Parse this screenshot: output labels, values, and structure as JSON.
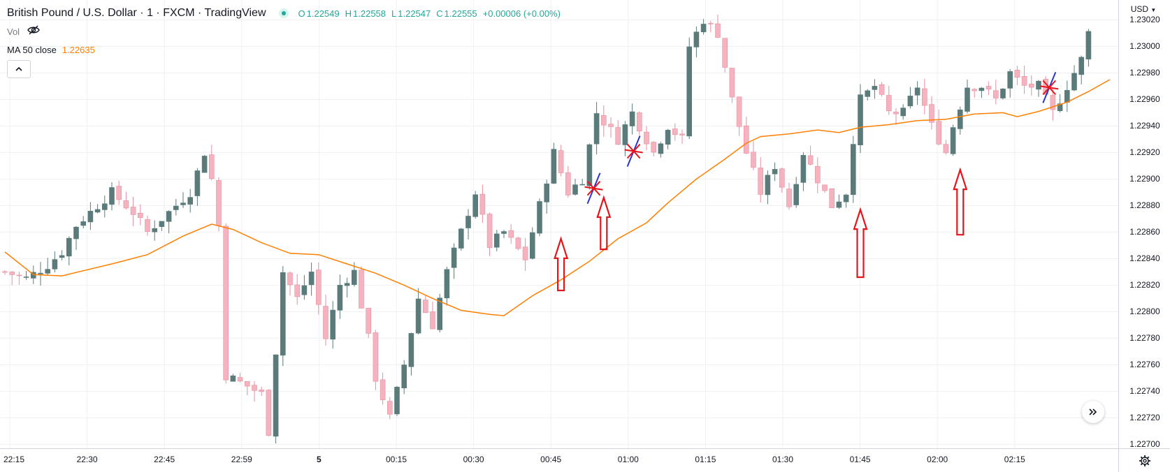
{
  "header": {
    "symbol_title": "British Pound / U.S. Dollar · 1 · FXCM · TradingView",
    "ohlc": {
      "o_label": "O",
      "o": "1.22549",
      "h_label": "H",
      "h": "1.22558",
      "l_label": "L",
      "l": "1.22547",
      "c_label": "C",
      "c": "1.22555",
      "change": "+0.00006 (+0.00%)"
    },
    "vol_label": "Vol",
    "ma_label": "MA 50 close",
    "ma_value": "1.22635"
  },
  "price_axis": {
    "currency": "USD",
    "ticks": [
      "1.23020",
      "1.23000",
      "1.22980",
      "1.22960",
      "1.22940",
      "1.22920",
      "1.22900",
      "1.22880",
      "1.22860",
      "1.22840",
      "1.22820",
      "1.22800",
      "1.22780",
      "1.22760",
      "1.22740",
      "1.22720",
      "1.22700"
    ]
  },
  "time_axis": {
    "ticks": [
      {
        "label": "22:15",
        "bold": false
      },
      {
        "label": "22:30",
        "bold": false
      },
      {
        "label": "22:45",
        "bold": false
      },
      {
        "label": "22:59",
        "bold": false
      },
      {
        "label": "5",
        "bold": true
      },
      {
        "label": "00:15",
        "bold": false
      },
      {
        "label": "00:30",
        "bold": false
      },
      {
        "label": "00:45",
        "bold": false
      },
      {
        "label": "01:00",
        "bold": false
      },
      {
        "label": "01:15",
        "bold": false
      },
      {
        "label": "01:30",
        "bold": false
      },
      {
        "label": "01:45",
        "bold": false
      },
      {
        "label": "02:00",
        "bold": false
      },
      {
        "label": "02:15",
        "bold": false
      }
    ]
  },
  "colors": {
    "up": "#5b7b7b",
    "down": "#f5b3bf",
    "ma": "#ff7f00",
    "grid": "#eef0f3",
    "arrow": "#e8141b",
    "mark_red": "#e8141b",
    "mark_blue": "#2a35c9"
  },
  "chart_data": {
    "type": "candlestick",
    "time_labels": [
      "22:15",
      "22:30",
      "22:45",
      "22:59",
      "5",
      "00:15",
      "00:30",
      "00:45",
      "01:00",
      "01:15",
      "01:30",
      "01:45",
      "02:00",
      "02:15"
    ],
    "price_labels": [
      "1.23020",
      "1.23000",
      "1.22980",
      "1.22960",
      "1.22940",
      "1.22920",
      "1.22900",
      "1.22880",
      "1.22860",
      "1.22840",
      "1.22820",
      "1.22800",
      "1.22780",
      "1.22760",
      "1.22740",
      "1.22720",
      "1.22700"
    ],
    "ylim": [
      1.22697,
      1.23035
    ],
    "close_path": [
      [
        0,
        1.2283
      ],
      [
        3,
        1.22825
      ],
      [
        6,
        1.22835
      ],
      [
        8,
        1.22845
      ],
      [
        10,
        1.22865
      ],
      [
        13,
        1.2288
      ],
      [
        15,
        1.2289
      ],
      [
        18,
        1.22875
      ],
      [
        20,
        1.2286
      ],
      [
        23,
        1.22875
      ],
      [
        26,
        1.2289
      ],
      [
        28,
        1.2292
      ],
      [
        29,
        1.229
      ],
      [
        30,
        1.22865
      ],
      [
        31,
        1.22752
      ],
      [
        34,
        1.22744
      ],
      [
        36,
        1.22738
      ],
      [
        37,
        1.2271
      ],
      [
        38,
        1.2277
      ],
      [
        39,
        1.2283
      ],
      [
        41,
        1.2281
      ],
      [
        43,
        1.2283
      ],
      [
        45,
        1.2278
      ],
      [
        47,
        1.2282
      ],
      [
        49,
        1.2283
      ],
      [
        51,
        1.2278
      ],
      [
        52,
        1.2275
      ],
      [
        54,
        1.2272
      ],
      [
        55,
        1.2274
      ],
      [
        56,
        1.2276
      ],
      [
        58,
        1.2281
      ],
      [
        60,
        1.2279
      ],
      [
        62,
        1.2283
      ],
      [
        64,
        1.2286
      ],
      [
        66,
        1.2289
      ],
      [
        68,
        1.2285
      ],
      [
        70,
        1.2286
      ],
      [
        73,
        1.2284
      ],
      [
        75,
        1.2288
      ],
      [
        77,
        1.2292
      ],
      [
        79,
        1.2289
      ],
      [
        81,
        1.229
      ],
      [
        83,
        1.2295
      ],
      [
        86,
        1.2293
      ],
      [
        88,
        1.2295
      ],
      [
        91,
        1.2292
      ],
      [
        93,
        1.2294
      ],
      [
        95,
        1.2293
      ],
      [
        96,
        1.23
      ],
      [
        98,
        1.2302
      ],
      [
        100,
        1.2301
      ],
      [
        102,
        1.2296
      ],
      [
        104,
        1.2292
      ],
      [
        106,
        1.2289
      ],
      [
        108,
        1.2291
      ],
      [
        110,
        1.2288
      ],
      [
        112,
        1.2292
      ],
      [
        114,
        1.229
      ],
      [
        116,
        1.2288
      ],
      [
        118,
        1.2289
      ],
      [
        119,
        1.2293
      ],
      [
        120,
        1.2296
      ],
      [
        122,
        1.2297
      ],
      [
        124,
        1.2295
      ],
      [
        126,
        1.2295
      ],
      [
        128,
        1.2297
      ],
      [
        130,
        1.2294
      ],
      [
        132,
        1.2292
      ],
      [
        133,
        1.2294
      ],
      [
        135,
        1.2297
      ],
      [
        137,
        1.2297
      ],
      [
        139,
        1.2296
      ],
      [
        141,
        1.2298
      ],
      [
        143,
        1.2297
      ],
      [
        145,
        1.2297
      ],
      [
        147,
        1.2295
      ],
      [
        149,
        1.2297
      ],
      [
        151,
        1.2299
      ],
      [
        152,
        1.2301
      ]
    ],
    "ma50": [
      [
        0,
        1.22845
      ],
      [
        4,
        1.22828
      ],
      [
        8,
        1.22827
      ],
      [
        15,
        1.22836
      ],
      [
        20,
        1.22843
      ],
      [
        25,
        1.22857
      ],
      [
        29,
        1.22866
      ],
      [
        32,
        1.22862
      ],
      [
        36,
        1.22852
      ],
      [
        40,
        1.22844
      ],
      [
        44,
        1.22843
      ],
      [
        48,
        1.22836
      ],
      [
        52,
        1.22829
      ],
      [
        56,
        1.2282
      ],
      [
        60,
        1.2281
      ],
      [
        64,
        1.22801
      ],
      [
        68,
        1.22798
      ],
      [
        70,
        1.22797
      ],
      [
        74,
        1.22812
      ],
      [
        78,
        1.22824
      ],
      [
        82,
        1.22838
      ],
      [
        86,
        1.22855
      ],
      [
        90,
        1.22867
      ],
      [
        93,
        1.22882
      ],
      [
        97,
        1.229
      ],
      [
        101,
        1.22915
      ],
      [
        104,
        1.22927
      ],
      [
        106,
        1.22932
      ],
      [
        110,
        1.22934
      ],
      [
        114,
        1.22937
      ],
      [
        117,
        1.22935
      ],
      [
        120,
        1.22939
      ],
      [
        124,
        1.22941
      ],
      [
        128,
        1.22944
      ],
      [
        132,
        1.22945
      ],
      [
        136,
        1.22949
      ],
      [
        140,
        1.2295
      ],
      [
        142,
        1.22947
      ],
      [
        145,
        1.22951
      ],
      [
        149,
        1.22958
      ],
      [
        152,
        1.22966
      ],
      [
        155,
        1.22975
      ]
    ],
    "annotations": [
      {
        "type": "arrow_up",
        "x": 78,
        "tip": 1.22855,
        "tail": 1.22816
      },
      {
        "type": "arrow_up",
        "x": 84,
        "tip": 1.22886,
        "tail": 1.22847
      },
      {
        "type": "arrow_up",
        "x": 120,
        "tip": 1.22877,
        "tail": 1.22826
      },
      {
        "type": "arrow_up",
        "x": 134,
        "tip": 1.22907,
        "tail": 1.22858
      },
      {
        "type": "star",
        "x": 82.6,
        "y": 1.22893
      },
      {
        "type": "star",
        "x": 88.2,
        "y": 1.22921
      },
      {
        "type": "star",
        "x": 146.5,
        "y": 1.22969
      }
    ],
    "x_domain": [
      0,
      155
    ]
  },
  "controls": {
    "collapse": "chevron-up-icon",
    "scroll": "double-chevron-right-icon",
    "settings": "gear-icon"
  }
}
